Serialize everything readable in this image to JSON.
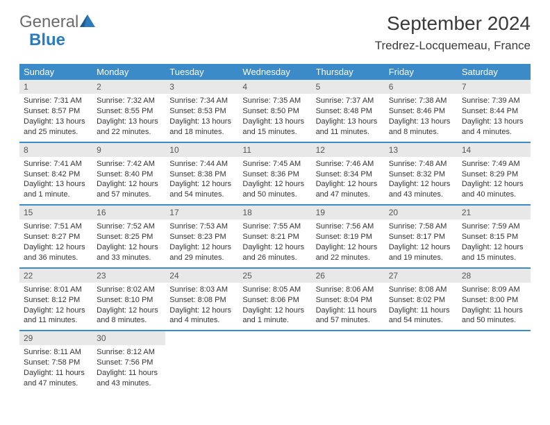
{
  "logo": {
    "part1": "General",
    "part2": "Blue"
  },
  "title": "September 2024",
  "location": "Tredrez-Locquemeau, France",
  "colors": {
    "header_bg": "#3b8bc9",
    "header_text": "#ffffff",
    "daynum_bg": "#e8e8e8",
    "border": "#3b8bc9",
    "text": "#333333",
    "logo_gray": "#6b6b6b",
    "logo_blue": "#2c7bbf"
  },
  "day_names": [
    "Sunday",
    "Monday",
    "Tuesday",
    "Wednesday",
    "Thursday",
    "Friday",
    "Saturday"
  ],
  "weeks": [
    [
      {
        "n": "1",
        "sr": "Sunrise: 7:31 AM",
        "ss": "Sunset: 8:57 PM",
        "dl": "Daylight: 13 hours and 25 minutes."
      },
      {
        "n": "2",
        "sr": "Sunrise: 7:32 AM",
        "ss": "Sunset: 8:55 PM",
        "dl": "Daylight: 13 hours and 22 minutes."
      },
      {
        "n": "3",
        "sr": "Sunrise: 7:34 AM",
        "ss": "Sunset: 8:53 PM",
        "dl": "Daylight: 13 hours and 18 minutes."
      },
      {
        "n": "4",
        "sr": "Sunrise: 7:35 AM",
        "ss": "Sunset: 8:50 PM",
        "dl": "Daylight: 13 hours and 15 minutes."
      },
      {
        "n": "5",
        "sr": "Sunrise: 7:37 AM",
        "ss": "Sunset: 8:48 PM",
        "dl": "Daylight: 13 hours and 11 minutes."
      },
      {
        "n": "6",
        "sr": "Sunrise: 7:38 AM",
        "ss": "Sunset: 8:46 PM",
        "dl": "Daylight: 13 hours and 8 minutes."
      },
      {
        "n": "7",
        "sr": "Sunrise: 7:39 AM",
        "ss": "Sunset: 8:44 PM",
        "dl": "Daylight: 13 hours and 4 minutes."
      }
    ],
    [
      {
        "n": "8",
        "sr": "Sunrise: 7:41 AM",
        "ss": "Sunset: 8:42 PM",
        "dl": "Daylight: 13 hours and 1 minute."
      },
      {
        "n": "9",
        "sr": "Sunrise: 7:42 AM",
        "ss": "Sunset: 8:40 PM",
        "dl": "Daylight: 12 hours and 57 minutes."
      },
      {
        "n": "10",
        "sr": "Sunrise: 7:44 AM",
        "ss": "Sunset: 8:38 PM",
        "dl": "Daylight: 12 hours and 54 minutes."
      },
      {
        "n": "11",
        "sr": "Sunrise: 7:45 AM",
        "ss": "Sunset: 8:36 PM",
        "dl": "Daylight: 12 hours and 50 minutes."
      },
      {
        "n": "12",
        "sr": "Sunrise: 7:46 AM",
        "ss": "Sunset: 8:34 PM",
        "dl": "Daylight: 12 hours and 47 minutes."
      },
      {
        "n": "13",
        "sr": "Sunrise: 7:48 AM",
        "ss": "Sunset: 8:32 PM",
        "dl": "Daylight: 12 hours and 43 minutes."
      },
      {
        "n": "14",
        "sr": "Sunrise: 7:49 AM",
        "ss": "Sunset: 8:29 PM",
        "dl": "Daylight: 12 hours and 40 minutes."
      }
    ],
    [
      {
        "n": "15",
        "sr": "Sunrise: 7:51 AM",
        "ss": "Sunset: 8:27 PM",
        "dl": "Daylight: 12 hours and 36 minutes."
      },
      {
        "n": "16",
        "sr": "Sunrise: 7:52 AM",
        "ss": "Sunset: 8:25 PM",
        "dl": "Daylight: 12 hours and 33 minutes."
      },
      {
        "n": "17",
        "sr": "Sunrise: 7:53 AM",
        "ss": "Sunset: 8:23 PM",
        "dl": "Daylight: 12 hours and 29 minutes."
      },
      {
        "n": "18",
        "sr": "Sunrise: 7:55 AM",
        "ss": "Sunset: 8:21 PM",
        "dl": "Daylight: 12 hours and 26 minutes."
      },
      {
        "n": "19",
        "sr": "Sunrise: 7:56 AM",
        "ss": "Sunset: 8:19 PM",
        "dl": "Daylight: 12 hours and 22 minutes."
      },
      {
        "n": "20",
        "sr": "Sunrise: 7:58 AM",
        "ss": "Sunset: 8:17 PM",
        "dl": "Daylight: 12 hours and 19 minutes."
      },
      {
        "n": "21",
        "sr": "Sunrise: 7:59 AM",
        "ss": "Sunset: 8:15 PM",
        "dl": "Daylight: 12 hours and 15 minutes."
      }
    ],
    [
      {
        "n": "22",
        "sr": "Sunrise: 8:01 AM",
        "ss": "Sunset: 8:12 PM",
        "dl": "Daylight: 12 hours and 11 minutes."
      },
      {
        "n": "23",
        "sr": "Sunrise: 8:02 AM",
        "ss": "Sunset: 8:10 PM",
        "dl": "Daylight: 12 hours and 8 minutes."
      },
      {
        "n": "24",
        "sr": "Sunrise: 8:03 AM",
        "ss": "Sunset: 8:08 PM",
        "dl": "Daylight: 12 hours and 4 minutes."
      },
      {
        "n": "25",
        "sr": "Sunrise: 8:05 AM",
        "ss": "Sunset: 8:06 PM",
        "dl": "Daylight: 12 hours and 1 minute."
      },
      {
        "n": "26",
        "sr": "Sunrise: 8:06 AM",
        "ss": "Sunset: 8:04 PM",
        "dl": "Daylight: 11 hours and 57 minutes."
      },
      {
        "n": "27",
        "sr": "Sunrise: 8:08 AM",
        "ss": "Sunset: 8:02 PM",
        "dl": "Daylight: 11 hours and 54 minutes."
      },
      {
        "n": "28",
        "sr": "Sunrise: 8:09 AM",
        "ss": "Sunset: 8:00 PM",
        "dl": "Daylight: 11 hours and 50 minutes."
      }
    ],
    [
      {
        "n": "29",
        "sr": "Sunrise: 8:11 AM",
        "ss": "Sunset: 7:58 PM",
        "dl": "Daylight: 11 hours and 47 minutes."
      },
      {
        "n": "30",
        "sr": "Sunrise: 8:12 AM",
        "ss": "Sunset: 7:56 PM",
        "dl": "Daylight: 11 hours and 43 minutes."
      },
      {
        "empty": true
      },
      {
        "empty": true
      },
      {
        "empty": true
      },
      {
        "empty": true
      },
      {
        "empty": true
      }
    ]
  ]
}
